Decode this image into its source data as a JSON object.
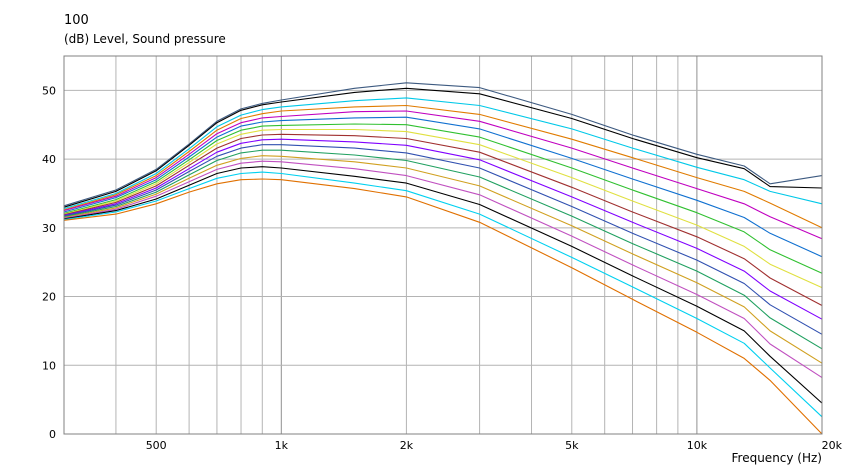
{
  "chart_data": {
    "type": "line",
    "title": "100",
    "ylabel": "(dB)  Level, Sound pressure",
    "xlabel": "Frequency  (Hz)",
    "x_scale": "log",
    "xlim": [
      300,
      20000
    ],
    "ylim": [
      0,
      55
    ],
    "grid": true,
    "x_ticks": [
      {
        "value": 500,
        "label": "500"
      },
      {
        "value": 1000,
        "label": "1k"
      },
      {
        "value": 2000,
        "label": "2k"
      },
      {
        "value": 5000,
        "label": "5k"
      },
      {
        "value": 10000,
        "label": "10k"
      },
      {
        "value": 20000,
        "label": "20k"
      }
    ],
    "y_ticks": [
      0,
      10,
      20,
      30,
      40,
      50
    ],
    "x": [
      300,
      400,
      500,
      600,
      700,
      800,
      900,
      1000,
      1500,
      2000,
      3000,
      5000,
      7000,
      10000,
      13000,
      15000,
      20000
    ],
    "series": [
      {
        "color": "#3d5a80",
        "values": [
          33.2,
          35.5,
          38.5,
          42.2,
          45.5,
          47.3,
          48.1,
          48.6,
          50.3,
          51.1,
          50.4,
          46.5,
          43.5,
          40.7,
          39.0,
          36.4,
          37.6
        ]
      },
      {
        "color": "#000000",
        "values": [
          33.0,
          35.3,
          38.3,
          42.0,
          45.3,
          47.1,
          47.9,
          48.3,
          49.7,
          50.3,
          49.5,
          45.9,
          43.0,
          40.2,
          38.6,
          36.0,
          35.8
        ]
      },
      {
        "color": "#00c8e8",
        "values": [
          32.8,
          35.0,
          37.9,
          41.5,
          44.7,
          46.4,
          47.2,
          47.6,
          48.5,
          48.9,
          47.8,
          44.4,
          41.6,
          38.8,
          37.0,
          35.3,
          33.5
        ]
      },
      {
        "color": "#e07b00",
        "values": [
          32.6,
          34.8,
          37.6,
          41.1,
          44.2,
          45.9,
          46.6,
          47.0,
          47.6,
          47.8,
          46.5,
          42.9,
          40.2,
          37.3,
          35.3,
          33.6,
          30.0
        ]
      },
      {
        "color": "#c000c0",
        "values": [
          32.5,
          34.6,
          37.3,
          40.7,
          43.7,
          45.3,
          46.0,
          46.2,
          46.9,
          47.0,
          45.5,
          41.6,
          38.7,
          35.7,
          33.5,
          31.6,
          28.4
        ]
      },
      {
        "color": "#1070d0",
        "values": [
          32.3,
          34.4,
          37.0,
          40.3,
          43.2,
          44.8,
          45.4,
          45.6,
          46.0,
          46.1,
          44.4,
          40.1,
          37.1,
          34.0,
          31.5,
          29.2,
          25.8
        ]
      },
      {
        "color": "#30c030",
        "values": [
          32.1,
          34.1,
          36.7,
          39.9,
          42.7,
          44.2,
          44.8,
          44.9,
          45.1,
          45.0,
          43.2,
          38.7,
          35.5,
          32.2,
          29.4,
          26.8,
          23.4
        ]
      },
      {
        "color": "#e0e040",
        "values": [
          32.0,
          33.9,
          36.4,
          39.5,
          42.2,
          43.6,
          44.2,
          44.3,
          44.3,
          44.0,
          42.1,
          37.3,
          33.9,
          30.4,
          27.3,
          24.7,
          21.3
        ]
      },
      {
        "color": "#a03030",
        "values": [
          31.9,
          33.7,
          36.1,
          39.1,
          41.6,
          43.0,
          43.5,
          43.6,
          43.4,
          43.0,
          41.0,
          35.9,
          32.3,
          28.7,
          25.5,
          22.7,
          18.7
        ]
      },
      {
        "color": "#8000ff",
        "values": [
          31.8,
          33.5,
          35.8,
          38.6,
          41.0,
          42.3,
          42.8,
          42.9,
          42.5,
          42.0,
          39.9,
          34.5,
          30.8,
          27.0,
          23.7,
          20.8,
          16.7
        ]
      },
      {
        "color": "#3050b0",
        "values": [
          31.7,
          33.3,
          35.5,
          38.2,
          40.4,
          41.6,
          42.1,
          42.1,
          41.6,
          40.9,
          38.7,
          33.1,
          29.2,
          25.3,
          21.9,
          18.8,
          14.5
        ]
      },
      {
        "color": "#20a060",
        "values": [
          31.6,
          33.1,
          35.2,
          37.7,
          39.8,
          40.9,
          41.3,
          41.3,
          40.6,
          39.8,
          37.4,
          31.7,
          27.7,
          23.7,
          20.2,
          16.9,
          12.4
        ]
      },
      {
        "color": "#d0a020",
        "values": [
          31.5,
          32.9,
          34.9,
          37.2,
          39.1,
          40.1,
          40.5,
          40.4,
          39.6,
          38.7,
          36.1,
          30.3,
          26.2,
          22.0,
          18.5,
          15.0,
          10.3
        ]
      },
      {
        "color": "#c050c0",
        "values": [
          31.4,
          32.7,
          34.6,
          36.7,
          38.5,
          39.4,
          39.7,
          39.6,
          38.6,
          37.6,
          34.8,
          28.8,
          24.6,
          20.3,
          16.8,
          13.1,
          8.2
        ]
      },
      {
        "color": "#000000",
        "values": [
          31.3,
          32.5,
          34.2,
          36.2,
          37.9,
          38.7,
          38.9,
          38.7,
          37.5,
          36.5,
          33.4,
          27.3,
          23.0,
          18.6,
          15.0,
          11.3,
          4.5
        ]
      },
      {
        "color": "#00d0f0",
        "values": [
          31.2,
          32.3,
          33.9,
          35.7,
          37.2,
          37.9,
          38.1,
          37.9,
          36.5,
          35.4,
          32.0,
          25.7,
          21.4,
          16.8,
          13.2,
          9.6,
          2.5
        ]
      },
      {
        "color": "#e07000",
        "values": [
          31.1,
          32.0,
          33.5,
          35.2,
          36.4,
          37.0,
          37.1,
          37.0,
          35.7,
          34.5,
          30.8,
          24.2,
          19.6,
          14.8,
          11.0,
          7.8,
          0.0
        ]
      }
    ]
  }
}
